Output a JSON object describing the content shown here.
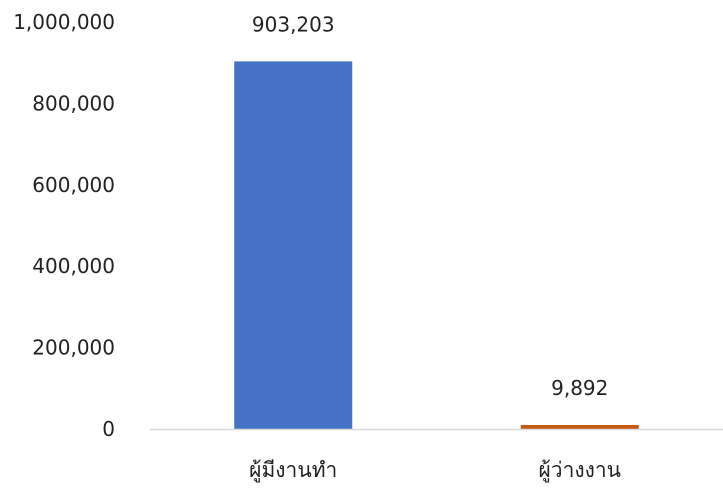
{
  "chart_data": {
    "type": "bar",
    "categories": [
      "ผู้มีงานทำ",
      "ผู้ว่างงาน"
    ],
    "values": [
      903203,
      9892
    ],
    "data_labels": [
      "903,203",
      "9,892"
    ],
    "colors": [
      "#4472C4",
      "#C55A11"
    ],
    "ylim": [
      0,
      1000000
    ],
    "yticks": [
      0,
      200000,
      400000,
      600000,
      800000,
      1000000
    ],
    "ytick_labels": [
      "0",
      "200,000",
      "400,000",
      "600,000",
      "800,000",
      "1,000,000"
    ],
    "axis_color": "#D9D9D9",
    "grid": false,
    "legend": "none"
  }
}
